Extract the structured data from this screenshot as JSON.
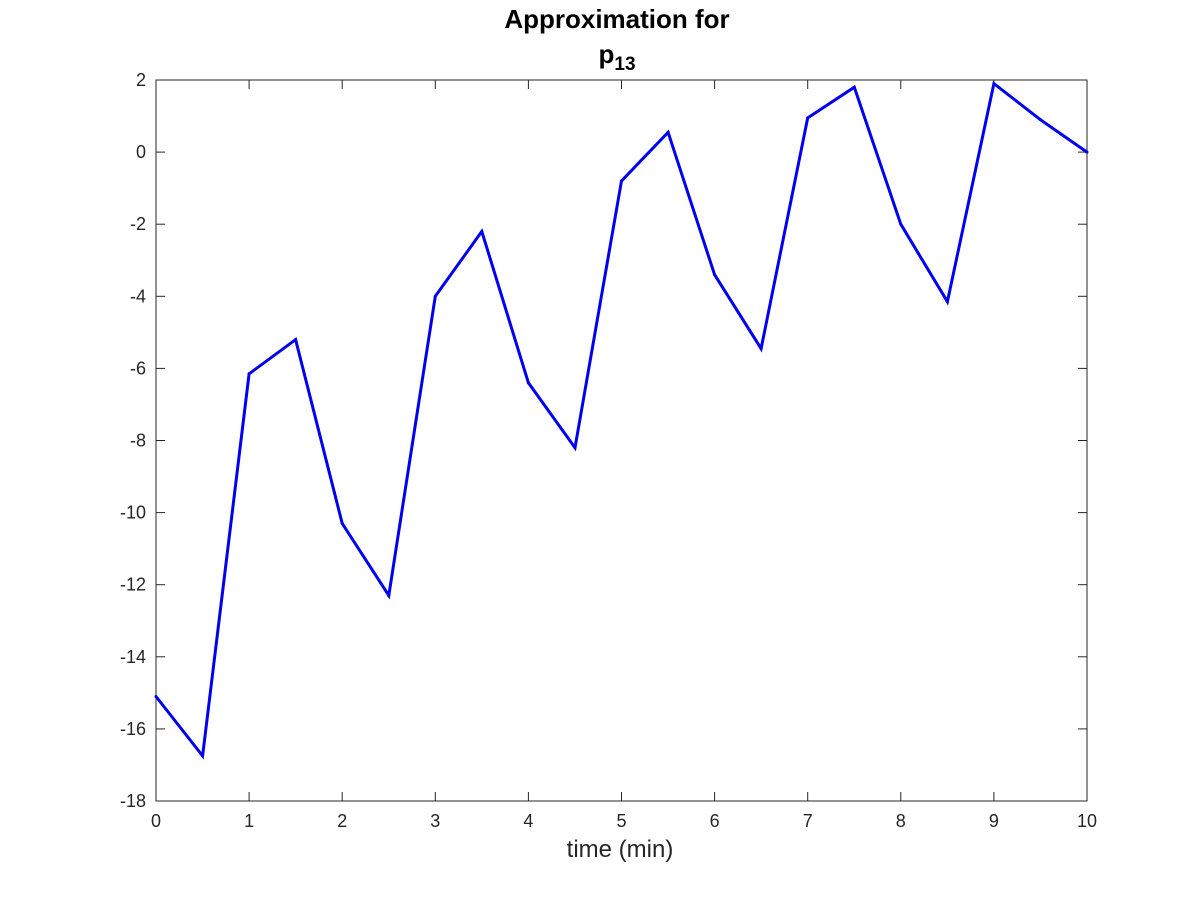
{
  "chart_data": {
    "type": "line",
    "title_line1": "Approximation for",
    "title_line2_base": "p",
    "title_line2_sub": "13",
    "xlabel": "time (min)",
    "ylabel": "",
    "xlim": [
      0,
      10
    ],
    "ylim": [
      -18,
      2
    ],
    "xticks": [
      0,
      1,
      2,
      3,
      4,
      5,
      6,
      7,
      8,
      9,
      10
    ],
    "yticks": [
      2,
      0,
      -2,
      -4,
      -6,
      -8,
      -10,
      -12,
      -14,
      -16,
      -18
    ],
    "grid": false,
    "series": [
      {
        "color": "#0000ee",
        "x": [
          0,
          0.5,
          1,
          1.5,
          2,
          2.5,
          3,
          3.5,
          4,
          4.5,
          5,
          5.5,
          6,
          6.5,
          7,
          7.5,
          8,
          8.5,
          9,
          9.5,
          10
        ],
        "y": [
          -15.1,
          -16.75,
          -6.15,
          -5.2,
          -10.3,
          -12.3,
          -4.0,
          -2.2,
          -6.4,
          -8.2,
          -0.8,
          0.55,
          -3.4,
          -5.45,
          0.95,
          1.8,
          -2.0,
          -4.15,
          1.9,
          0.9,
          0.0
        ]
      }
    ]
  }
}
